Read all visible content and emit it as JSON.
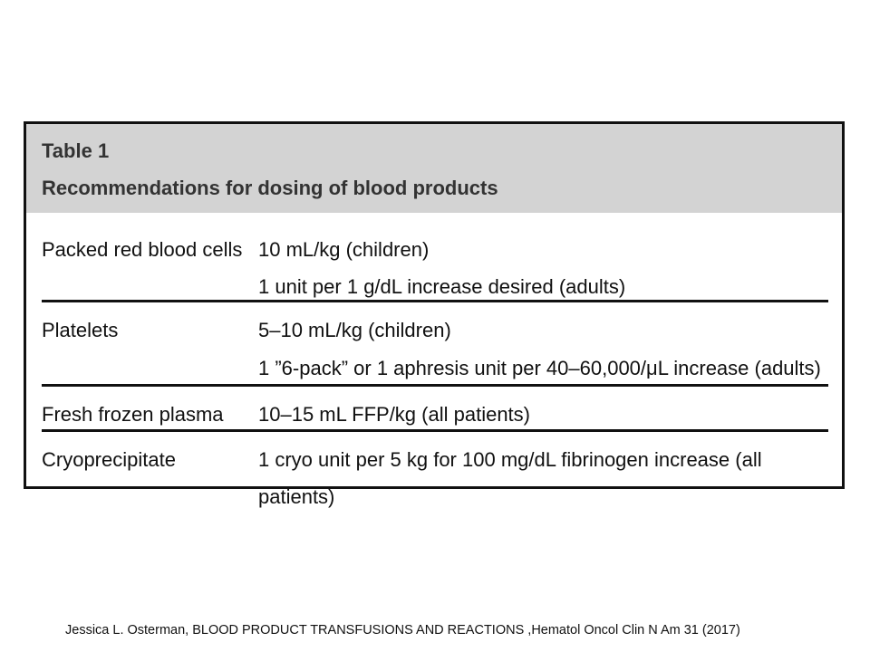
{
  "table": {
    "label": "Table 1",
    "caption": "Recommendations for dosing of blood products",
    "rows": [
      {
        "product": "Packed red blood cells",
        "dose_lines": [
          "10 mL/kg (children)",
          "1 unit per 1 g/dL increase desired (adults)"
        ]
      },
      {
        "product": "Platelets",
        "dose_lines": [
          "5–10 mL/kg (children)",
          "1 ”6-pack” or 1 aphresis unit per 40–60,000/μL increase (adults)"
        ]
      },
      {
        "product": "Fresh frozen plasma",
        "dose_lines": [
          "10–15 mL FFP/kg (all patients)"
        ]
      },
      {
        "product": "Cryoprecipitate",
        "dose_lines": [
          "1 cryo unit per 5 kg for 100 mg/dL fibrinogen increase (all patients)"
        ]
      }
    ]
  },
  "citation": "Jessica L. Osterman, BLOOD PRODUCT TRANSFUSIONS AND REACTIONS ,Hematol Oncol Clin N Am 31 (2017)"
}
